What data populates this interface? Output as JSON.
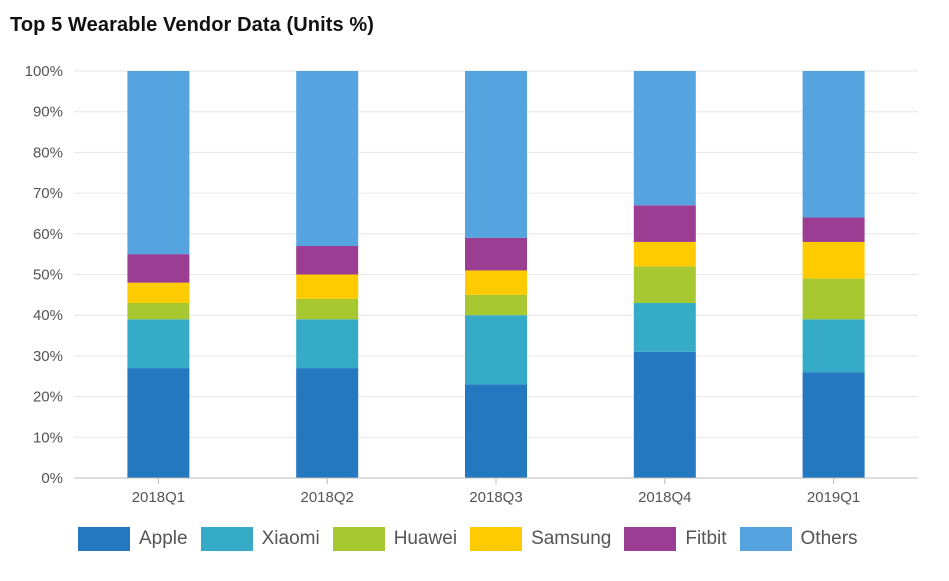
{
  "chart_data": {
    "type": "bar",
    "stacked": true,
    "title": "Top 5 Wearable Vendor Data (Units %)",
    "xlabel": "",
    "ylabel": "",
    "ylim": [
      0,
      100
    ],
    "yticks": [
      "0%",
      "10%",
      "20%",
      "30%",
      "40%",
      "50%",
      "60%",
      "70%",
      "80%",
      "90%",
      "100%"
    ],
    "categories": [
      "2018Q1",
      "2018Q2",
      "2018Q3",
      "2018Q4",
      "2019Q1"
    ],
    "grid": true,
    "legend": "bottom",
    "series": [
      {
        "name": "Apple",
        "color": "#2378c0",
        "values": [
          27,
          27,
          23,
          31,
          26
        ]
      },
      {
        "name": "Xiaomi",
        "color": "#35abc8",
        "values": [
          12,
          12,
          17,
          12,
          13
        ]
      },
      {
        "name": "Huawei",
        "color": "#a8c832",
        "values": [
          4,
          5,
          5,
          9,
          10
        ]
      },
      {
        "name": "Samsung",
        "color": "#fecb00",
        "values": [
          5,
          6,
          6,
          6,
          9
        ]
      },
      {
        "name": "Fitbit",
        "color": "#9b3e93",
        "values": [
          7,
          7,
          8,
          9,
          6
        ]
      },
      {
        "name": "Others",
        "color": "#55a4e0",
        "values": [
          45,
          43,
          41,
          33,
          36
        ]
      }
    ]
  }
}
